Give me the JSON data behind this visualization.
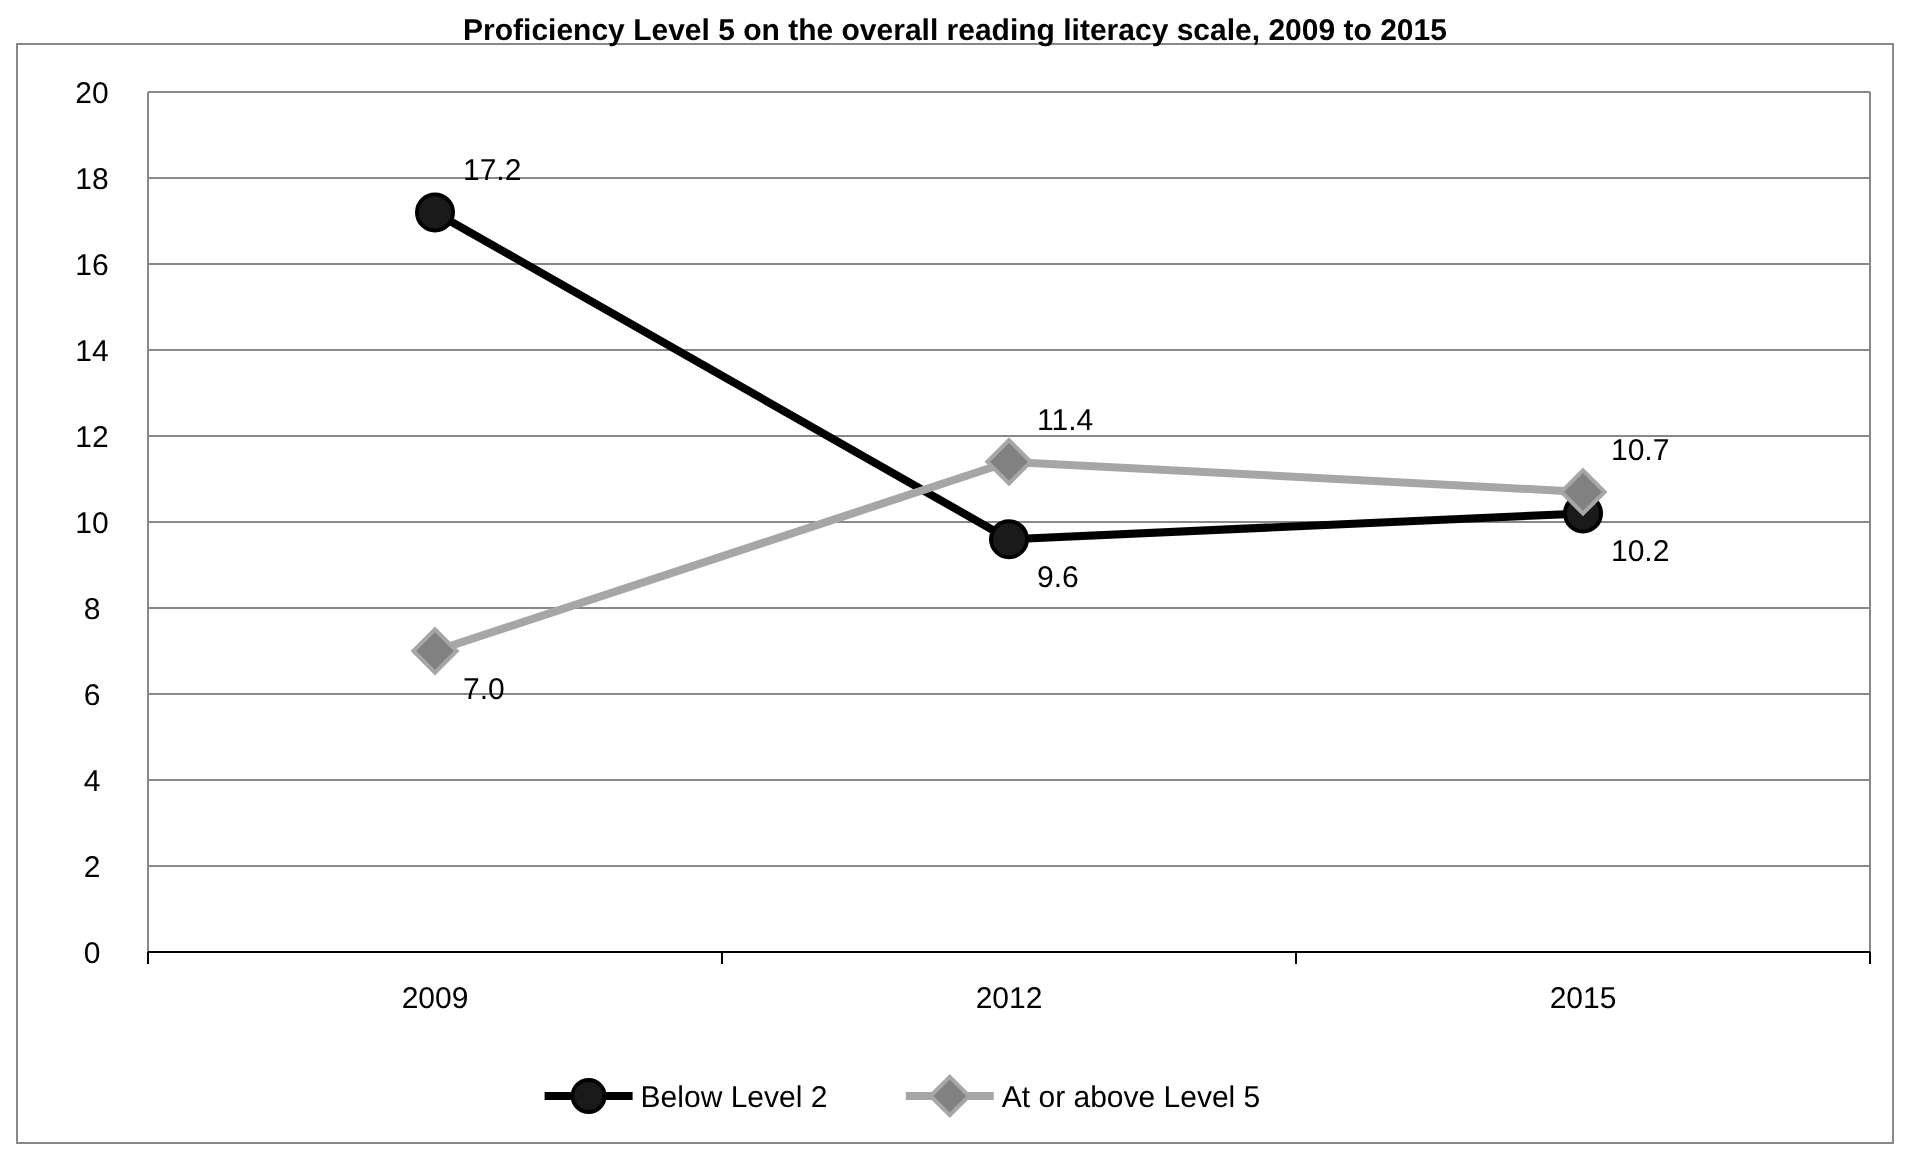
{
  "chart_data": {
    "type": "line",
    "title": "Proficiency Level 5 on the overall reading literacy scale, 2009 to 2015",
    "categories": [
      "2009",
      "2012",
      "2015"
    ],
    "series": [
      {
        "name": "Below Level 2",
        "color": "#000000",
        "marker": "circle",
        "values": [
          17.2,
          9.6,
          10.2
        ],
        "value_labels": [
          "17.2",
          "9.6",
          "10.2"
        ]
      },
      {
        "name": "At or above Level 5",
        "color": "#a6a6a6",
        "marker": "diamond",
        "values": [
          7.0,
          11.4,
          10.7
        ],
        "value_labels": [
          "7.0",
          "11.4",
          "10.7"
        ]
      }
    ],
    "ylim": [
      0,
      20
    ],
    "yticks": [
      0,
      2,
      4,
      6,
      8,
      10,
      12,
      14,
      16,
      18,
      20
    ],
    "grid": "y",
    "legend": "bottom"
  }
}
